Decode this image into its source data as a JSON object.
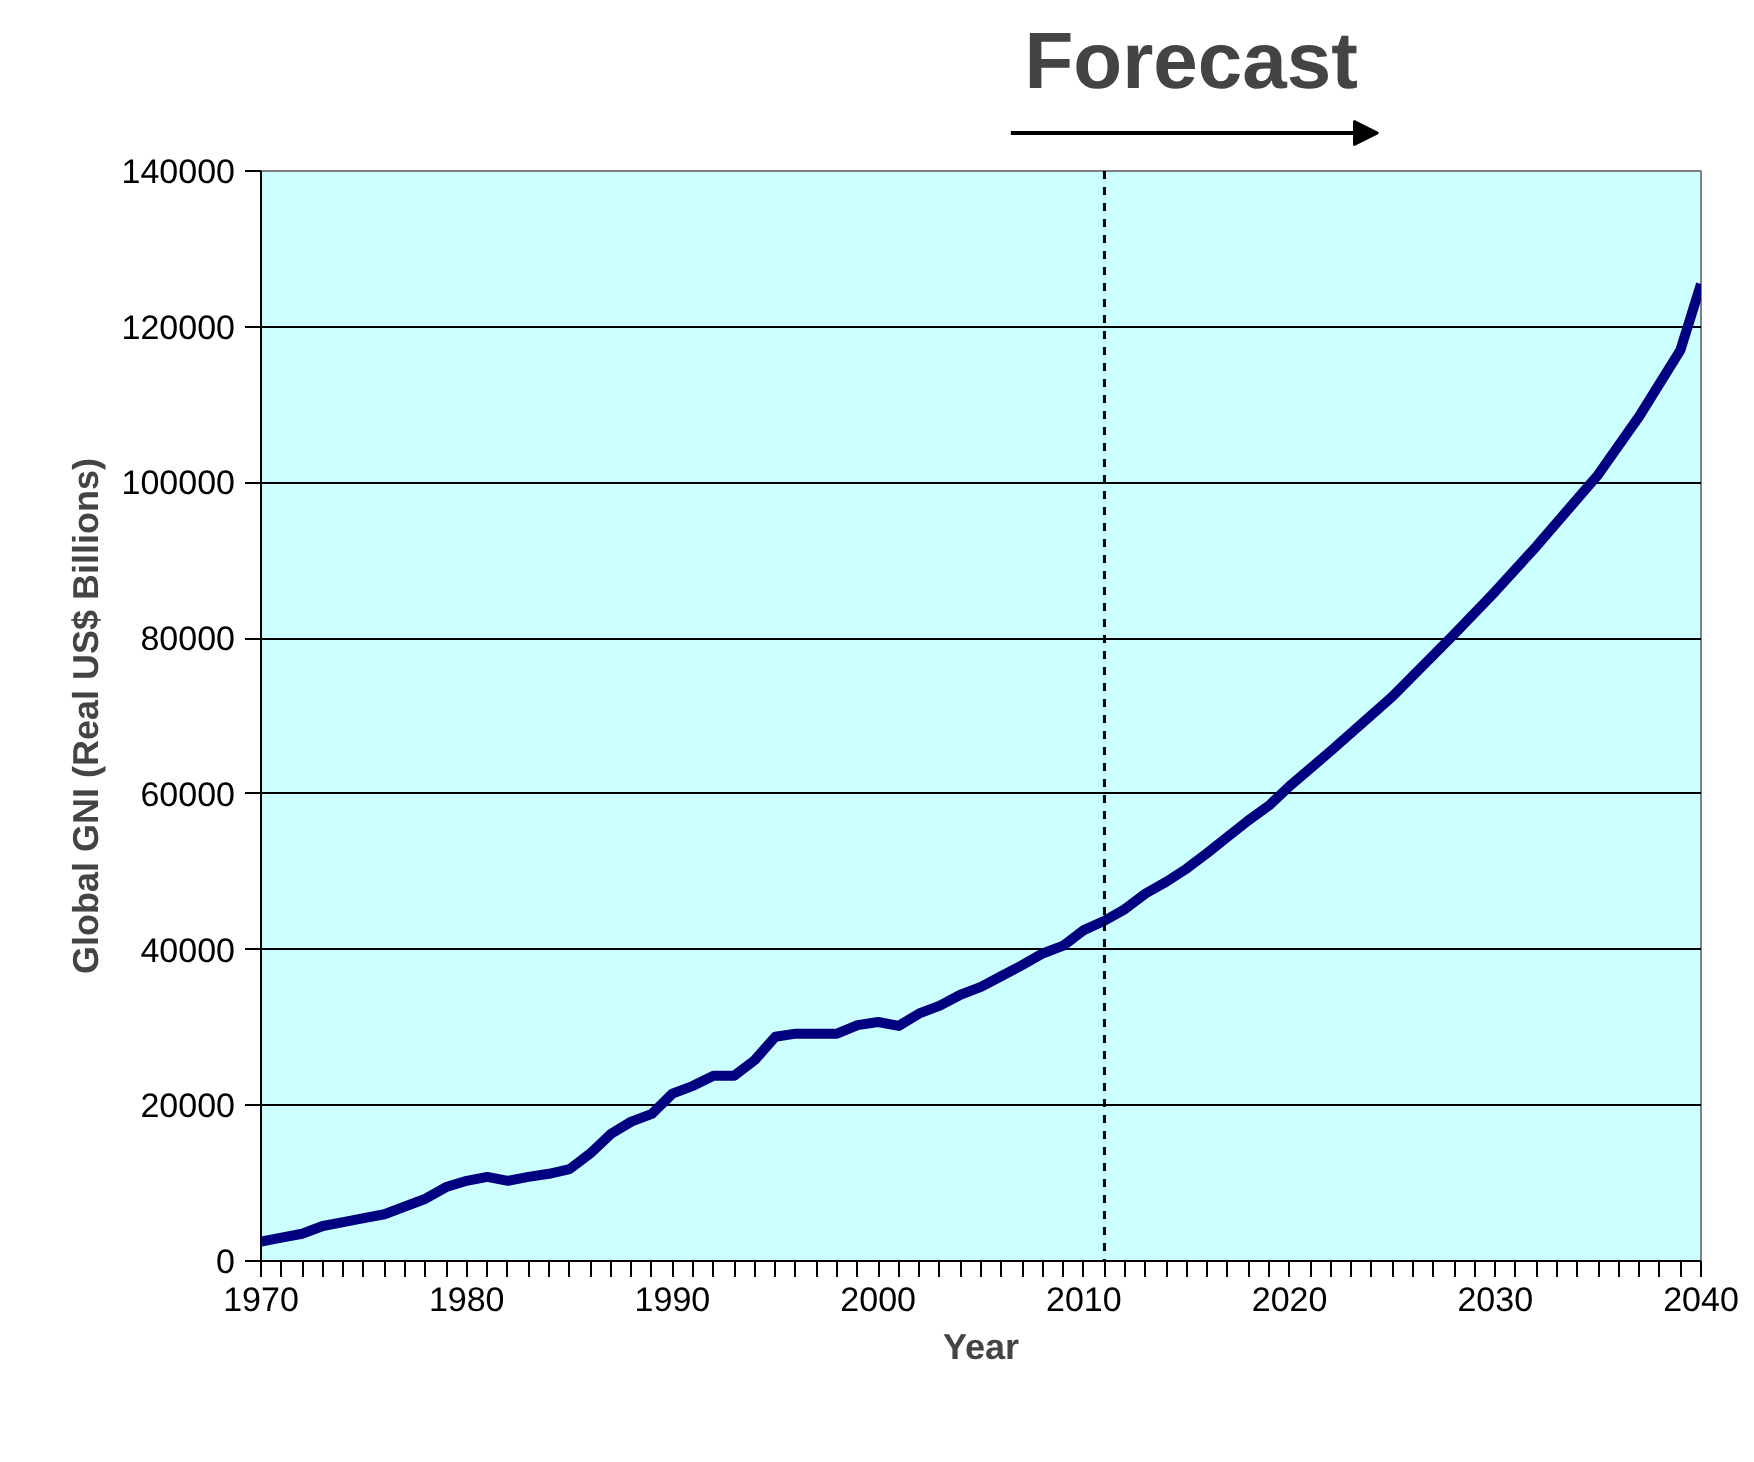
{
  "chart_data": {
    "type": "line",
    "xlabel": "Year",
    "ylabel": "Global GNI (Real US$ Billions)",
    "x": [
      1970,
      1971,
      1972,
      1973,
      1974,
      1975,
      1976,
      1977,
      1978,
      1979,
      1980,
      1981,
      1982,
      1983,
      1984,
      1985,
      1986,
      1987,
      1988,
      1989,
      1990,
      1991,
      1992,
      1993,
      1994,
      1995,
      1996,
      1997,
      1998,
      1999,
      2000,
      2001,
      2002,
      2003,
      2004,
      2005,
      2006,
      2007,
      2008,
      2009,
      2010,
      2011,
      2012,
      2013,
      2014,
      2015,
      2016,
      2017,
      2018,
      2019,
      2020,
      2022,
      2025,
      2028,
      2030,
      2032,
      2035,
      2037,
      2039,
      2040
    ],
    "series": [
      {
        "color": "#000080",
        "values": [
          2500,
          3000,
          3500,
          4500,
          5000,
          5500,
          6000,
          7000,
          8000,
          9500,
          10300,
          10800,
          10300,
          10800,
          11200,
          11800,
          13800,
          16300,
          17900,
          18900,
          21500,
          22500,
          23800,
          23800,
          25800,
          28800,
          29200,
          29200,
          29200,
          30300,
          30700,
          30200,
          31800,
          32800,
          34200,
          35200,
          36600,
          38000,
          39500,
          40500,
          42500,
          43700,
          45200,
          47200,
          48700,
          50400,
          52400,
          54500,
          56600,
          58500,
          61000,
          65500,
          72500,
          80500,
          86000,
          91800,
          101000,
          108500,
          117000,
          125500
        ]
      }
    ],
    "xlim": [
      1970,
      2040
    ],
    "ylim": [
      0,
      140000
    ],
    "xticks": [
      1970,
      {
        "value": 1971,
        "label": null
      },
      {
        "value": 1972,
        "label": null
      },
      {
        "value": 1973,
        "label": null
      },
      {
        "value": 1974,
        "label": null
      },
      {
        "value": 1975,
        "label": null
      },
      {
        "value": 1976,
        "label": null
      },
      {
        "value": 1977,
        "label": null
      },
      {
        "value": 1978,
        "label": null
      },
      {
        "value": 1979,
        "label": null
      },
      1980,
      {
        "value": 1981,
        "label": null
      },
      {
        "value": 1982,
        "label": null
      },
      {
        "value": 1983,
        "label": null
      },
      {
        "value": 1984,
        "label": null
      },
      {
        "value": 1985,
        "label": null
      },
      {
        "value": 1986,
        "label": null
      },
      {
        "value": 1987,
        "label": null
      },
      {
        "value": 1988,
        "label": null
      },
      {
        "value": 1989,
        "label": null
      },
      1990,
      {
        "value": 1991,
        "label": null
      },
      {
        "value": 1992,
        "label": null
      },
      {
        "value": 1993,
        "label": null
      },
      {
        "value": 1994,
        "label": null
      },
      {
        "value": 1995,
        "label": null
      },
      {
        "value": 1996,
        "label": null
      },
      {
        "value": 1997,
        "label": null
      },
      {
        "value": 1998,
        "label": null
      },
      {
        "value": 1999,
        "label": null
      },
      2000,
      {
        "value": 2001,
        "label": null
      },
      {
        "value": 2002,
        "label": null
      },
      {
        "value": 2003,
        "label": null
      },
      {
        "value": 2004,
        "label": null
      },
      {
        "value": 2005,
        "label": null
      },
      {
        "value": 2006,
        "label": null
      },
      {
        "value": 2007,
        "label": null
      },
      {
        "value": 2008,
        "label": null
      },
      {
        "value": 2009,
        "label": null
      },
      2010,
      {
        "value": 2011,
        "label": null
      },
      {
        "value": 2012,
        "label": null
      },
      {
        "value": 2013,
        "label": null
      },
      {
        "value": 2014,
        "label": null
      },
      {
        "value": 2015,
        "label": null
      },
      {
        "value": 2016,
        "label": null
      },
      {
        "value": 2017,
        "label": null
      },
      {
        "value": 2018,
        "label": null
      },
      {
        "value": 2019,
        "label": null
      },
      2020,
      {
        "value": 2021,
        "label": null
      },
      {
        "value": 2022,
        "label": null
      },
      {
        "value": 2023,
        "label": null
      },
      {
        "value": 2024,
        "label": null
      },
      {
        "value": 2025,
        "label": null
      },
      {
        "value": 2026,
        "label": null
      },
      {
        "value": 2027,
        "label": null
      },
      {
        "value": 2028,
        "label": null
      },
      {
        "value": 2029,
        "label": null
      },
      2030,
      {
        "value": 2031,
        "label": null
      },
      {
        "value": 2032,
        "label": null
      },
      {
        "value": 2033,
        "label": null
      },
      {
        "value": 2034,
        "label": null
      },
      {
        "value": 2035,
        "label": null
      },
      {
        "value": 2036,
        "label": null
      },
      {
        "value": 2037,
        "label": null
      },
      {
        "value": 2038,
        "label": null
      },
      {
        "value": 2039,
        "label": null
      },
      2040
    ],
    "yticks": [
      0,
      20000,
      40000,
      60000,
      80000,
      100000,
      120000,
      140000
    ],
    "grid": "y",
    "line_style": "solid",
    "ref_lines": [
      {
        "axis": "x",
        "value": 2011,
        "label": "Forecast",
        "color": "#000000",
        "line_style": "dashed"
      }
    ]
  }
}
